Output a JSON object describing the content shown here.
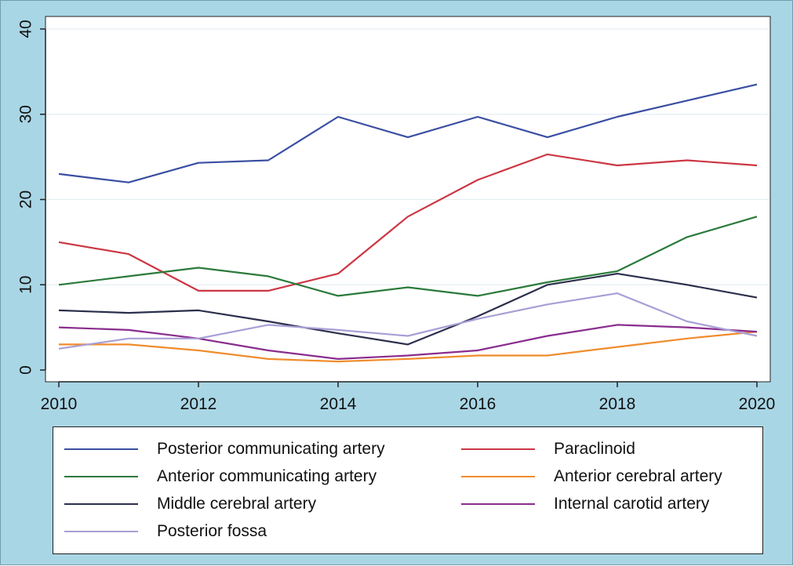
{
  "chart_data": {
    "type": "line",
    "title": "",
    "xlabel": "",
    "ylabel": "",
    "xlim": [
      2010,
      2020
    ],
    "ylim": [
      0,
      40
    ],
    "x_ticks": [
      "2010",
      "2012",
      "2014",
      "2016",
      "2018",
      "2020"
    ],
    "y_ticks": [
      "0",
      "10",
      "20",
      "30",
      "40"
    ],
    "grid": "horizontal",
    "legend_position": "bottom",
    "x": [
      2010,
      2011,
      2012,
      2013,
      2014,
      2015,
      2016,
      2017,
      2018,
      2019,
      2020
    ],
    "series": [
      {
        "name": "Posterior communicating artery",
        "color": "#3a4fa2",
        "values": [
          23,
          22,
          24.3,
          24.6,
          29.7,
          27.3,
          29.7,
          27.3,
          29.7,
          31.6,
          33.5
        ]
      },
      {
        "name": "Paraclinoid",
        "color": "#cc3744",
        "values": [
          15,
          13.6,
          9.3,
          9.3,
          11.3,
          18,
          22.3,
          25.3,
          24,
          24.6,
          24
        ]
      },
      {
        "name": "Anterior communicating artery",
        "color": "#2b7a3b",
        "values": [
          10,
          11,
          12,
          11,
          8.7,
          9.7,
          8.7,
          10.3,
          11.6,
          15.6,
          18
        ]
      },
      {
        "name": "Anterior cerebral artery",
        "color": "#f08c2c",
        "values": [
          3,
          3,
          2.3,
          1.3,
          1,
          1.3,
          1.7,
          1.7,
          2.7,
          3.7,
          4.5
        ]
      },
      {
        "name": "Middle cerebral artery",
        "color": "#2b2f4c",
        "values": [
          7,
          6.7,
          7,
          5.7,
          4.3,
          3,
          6.3,
          10,
          11.3,
          10,
          8.5
        ]
      },
      {
        "name": "Internal carotid artery",
        "color": "#8a2d8e",
        "values": [
          5,
          4.7,
          3.7,
          2.3,
          1.3,
          1.7,
          2.3,
          4,
          5.3,
          5,
          4.5
        ]
      },
      {
        "name": "Posterior fossa",
        "color": "#a89fd6",
        "values": [
          2.5,
          3.7,
          3.7,
          5.3,
          4.7,
          4,
          6,
          7.7,
          9,
          5.7,
          4
        ]
      }
    ]
  }
}
